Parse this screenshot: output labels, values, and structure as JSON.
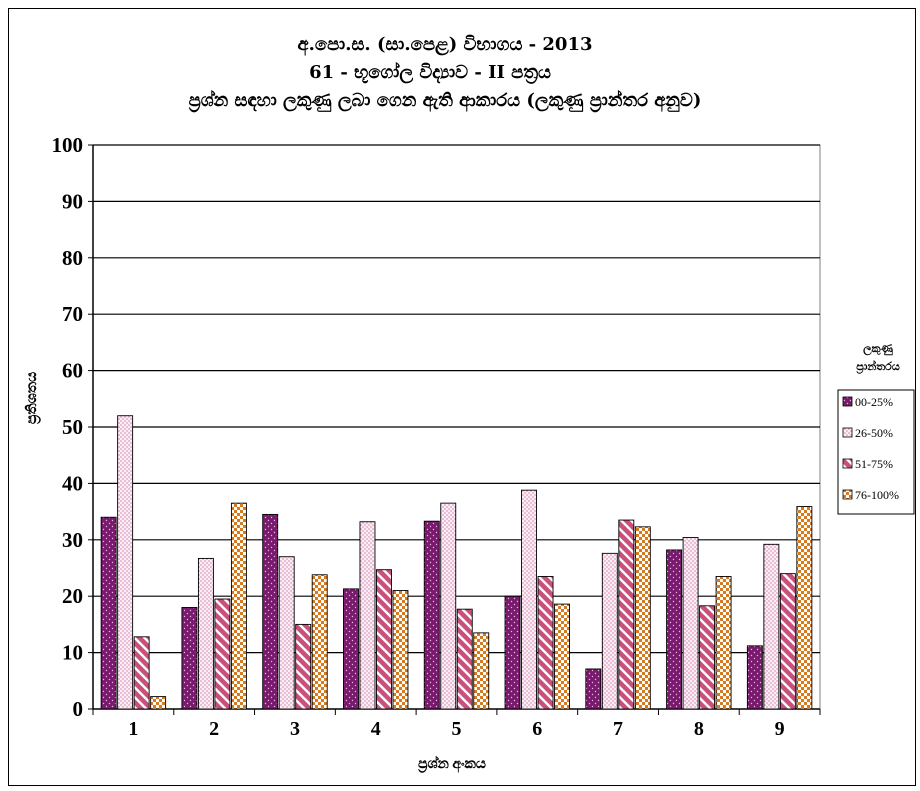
{
  "chart_data": {
    "type": "bar",
    "title_lines": [
      "අ.පො.ස. (සා.පෙළ) විභාගය - 2013",
      "61 - භූගෝල විද්‍යාව  -  II පත්‍රය",
      "ප්‍රශ්න සඳහා ලකුණු ලබා ගෙන ඇති ආකාරය  (ලකුණු ප්‍රාන්තර අනුව)"
    ],
    "xlabel": "ප්‍රශ්න අංකය",
    "ylabel": "ප්‍රතිශතය",
    "ylim": [
      0,
      100
    ],
    "yticks": [
      0,
      10,
      20,
      30,
      40,
      50,
      60,
      70,
      80,
      90,
      100
    ],
    "grid": "horizontal",
    "legend_title_lines": [
      "ලකුණු",
      "ප්‍රාන්තරය"
    ],
    "legend_placement": "right",
    "categories": [
      "1",
      "2",
      "3",
      "4",
      "5",
      "6",
      "7",
      "8",
      "9"
    ],
    "series": [
      {
        "name": "00-25%",
        "color": "#7a1a6e",
        "pattern": "dots-dark",
        "values": [
          34,
          18,
          34.5,
          21.3,
          33.3,
          20,
          7.1,
          28.2,
          11.2
        ]
      },
      {
        "name": "26-50%",
        "color": "#f6d6ea",
        "pattern": "dots-light",
        "values": [
          52,
          26.7,
          27,
          33.2,
          36.5,
          38.8,
          27.6,
          30.4,
          29.2
        ]
      },
      {
        "name": "51-75%",
        "color": "#c8507a",
        "pattern": "diagonal",
        "values": [
          12.8,
          19.5,
          15,
          24.7,
          17.7,
          23.5,
          33.5,
          18.3,
          24
        ]
      },
      {
        "name": "76-100%",
        "color": "#d77a1e",
        "pattern": "checker",
        "values": [
          2.2,
          36.5,
          23.8,
          21,
          13.5,
          18.6,
          32.3,
          23.5,
          35.9
        ]
      }
    ]
  }
}
